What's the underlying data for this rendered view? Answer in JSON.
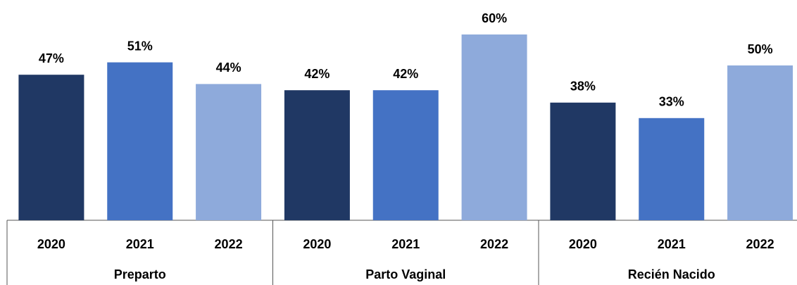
{
  "chart_data": {
    "type": "bar",
    "categories": [
      "Preparto",
      "Parto Vaginal",
      "Recién Nacido"
    ],
    "series": [
      {
        "name": "2020",
        "color": "#203864",
        "values": [
          47,
          42,
          38
        ],
        "value_labels": [
          "47%",
          "42%",
          "38%"
        ]
      },
      {
        "name": "2021",
        "color": "#4472c4",
        "values": [
          51,
          42,
          33
        ],
        "value_labels": [
          "51%",
          "42%",
          "33%"
        ]
      },
      {
        "name": "2022",
        "color": "#8eaadb",
        "values": [
          44,
          60,
          50
        ],
        "value_labels": [
          "44%",
          "60%",
          "50%"
        ]
      }
    ],
    "ylim": [
      0,
      60
    ]
  }
}
